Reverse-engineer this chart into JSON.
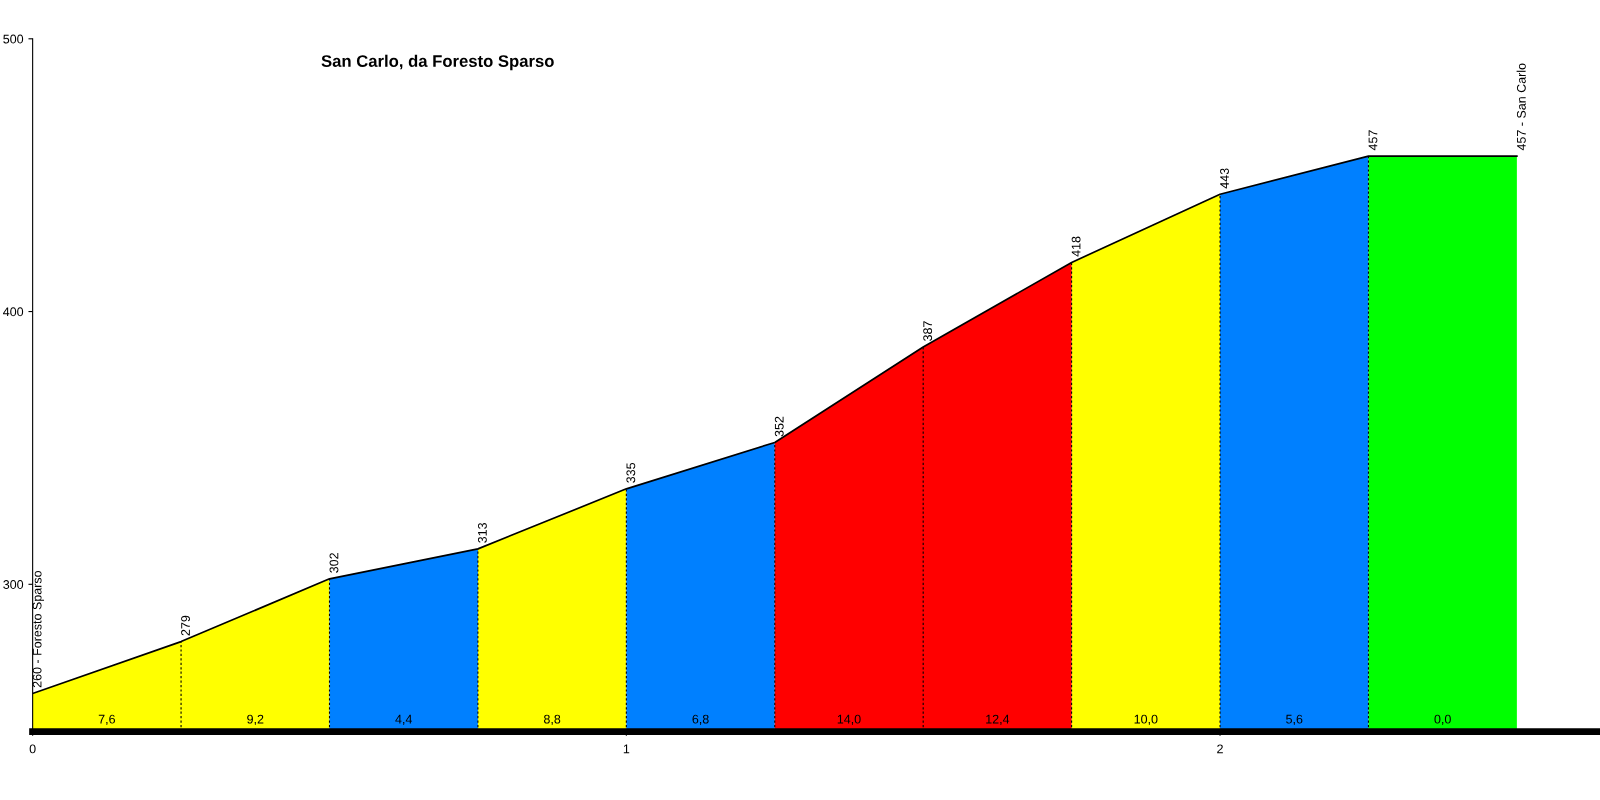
{
  "chart_data": {
    "type": "area",
    "title": "San Carlo, da Foresto Sparso",
    "xlim": [
      0,
      2.64
    ],
    "xticks": [
      0,
      1,
      2
    ],
    "ylim": [
      246,
      500
    ],
    "yticks": [
      300,
      400,
      500
    ],
    "legend": false,
    "series": [
      {
        "x": [
          0,
          0.25,
          0.5,
          null,
          0.75,
          1.0,
          null,
          1.75,
          2.0
        ],
        "values": [
          260,
          279,
          302,
          null,
          313,
          335,
          null,
          418,
          443
        ],
        "color": "#ffff00"
      },
      {
        "x": [
          0.5,
          0.75,
          null,
          1.0,
          1.25,
          null,
          2.0,
          2.25
        ],
        "values": [
          302,
          313,
          null,
          335,
          352,
          null,
          443,
          457
        ],
        "color": "#0080ff"
      },
      {
        "x": [
          1.25,
          1.5,
          1.75
        ],
        "values": [
          352,
          387,
          418
        ],
        "color": "#ff0000"
      },
      {
        "x": [
          2.25,
          2.5
        ],
        "values": [
          457,
          457
        ],
        "color": "#00ff00"
      },
      {
        "type": "line",
        "x": [
          0,
          0.25,
          0.5,
          0.75,
          1.0,
          1.25,
          1.5,
          1.75,
          2.0,
          2.25,
          2.5
        ],
        "values": [
          260,
          279,
          302,
          313,
          335,
          352,
          387,
          418,
          443,
          457,
          457
        ],
        "color": "#000000",
        "value_labels": [
          "260 - Foresto Sparso",
          "279",
          "302",
          "313",
          "335",
          "352",
          "387",
          "418",
          "443",
          "457",
          "457 - San Carlo"
        ]
      }
    ],
    "annotations": [
      "7,6",
      "9,2",
      "4,4",
      "8,8",
      "6,8",
      "14,0",
      "12,4",
      "10,0",
      "5,6",
      "0,0"
    ]
  }
}
